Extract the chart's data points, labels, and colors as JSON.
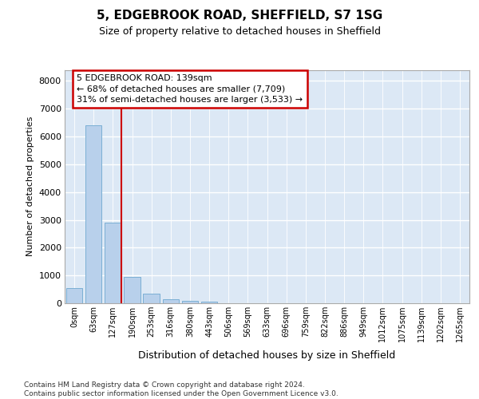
{
  "title": "5, EDGEBROOK ROAD, SHEFFIELD, S7 1SG",
  "subtitle": "Size of property relative to detached houses in Sheffield",
  "xlabel": "Distribution of detached houses by size in Sheffield",
  "ylabel": "Number of detached properties",
  "bar_color": "#b8d0eb",
  "bar_edge_color": "#7bafd4",
  "background_color": "#dce8f5",
  "grid_color": "#ffffff",
  "categories": [
    "0sqm",
    "63sqm",
    "127sqm",
    "190sqm",
    "253sqm",
    "316sqm",
    "380sqm",
    "443sqm",
    "506sqm",
    "569sqm",
    "633sqm",
    "696sqm",
    "759sqm",
    "822sqm",
    "886sqm",
    "949sqm",
    "1012sqm",
    "1075sqm",
    "1139sqm",
    "1202sqm",
    "1265sqm"
  ],
  "values": [
    550,
    6400,
    2900,
    960,
    350,
    150,
    80,
    50,
    8,
    3,
    2,
    1,
    0,
    0,
    0,
    0,
    0,
    0,
    0,
    0,
    0
  ],
  "ylim": [
    0,
    8400
  ],
  "yticks": [
    0,
    1000,
    2000,
    3000,
    4000,
    5000,
    6000,
    7000,
    8000
  ],
  "vline_color": "#cc0000",
  "annotation_border_color": "#cc0000",
  "annotation_text": "5 EDGEBROOK ROAD: 139sqm\n← 68% of detached houses are smaller (7,709)\n31% of semi-detached houses are larger (3,533) →",
  "footer_text": "Contains HM Land Registry data © Crown copyright and database right 2024.\nContains public sector information licensed under the Open Government Licence v3.0.",
  "fig_bg": "#ffffff"
}
